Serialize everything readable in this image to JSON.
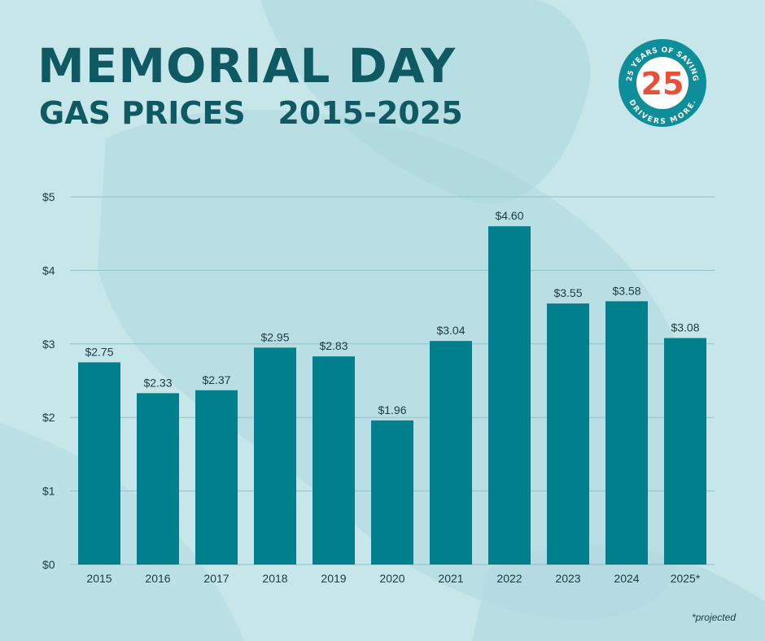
{
  "header": {
    "title": "MEMORIAL DAY",
    "subtitle": "GAS PRICES   2015-2025"
  },
  "badge": {
    "number": "25",
    "top_text": "25 YEARS OF SAVING",
    "bottom_text": "DRIVERS MORE."
  },
  "footnote": "*projected",
  "colors": {
    "background": "#c6e6ea",
    "bar": "#00808c",
    "title": "#0f5a62",
    "badge_ring": "#0e8e98",
    "badge_number": "#e9503a"
  },
  "chart_data": {
    "type": "bar",
    "categories": [
      "2015",
      "2016",
      "2017",
      "2018",
      "2019",
      "2020",
      "2021",
      "2022",
      "2023",
      "2024",
      "2025*"
    ],
    "values": [
      2.75,
      2.33,
      2.37,
      2.95,
      2.83,
      1.96,
      3.04,
      4.6,
      3.55,
      3.58,
      3.08
    ],
    "value_labels": [
      "$2.75",
      "$2.33",
      "$2.37",
      "$2.95",
      "$2.83",
      "$1.96",
      "$3.04",
      "$4.60",
      "$3.55",
      "$3.58",
      "$3.08"
    ],
    "y_ticks": [
      0,
      1,
      2,
      3,
      4,
      5
    ],
    "y_tick_labels": [
      "$0",
      "$1",
      "$2",
      "$3",
      "$4",
      "$5"
    ],
    "ylim": [
      0,
      5
    ],
    "grid": true,
    "legend": "none"
  }
}
